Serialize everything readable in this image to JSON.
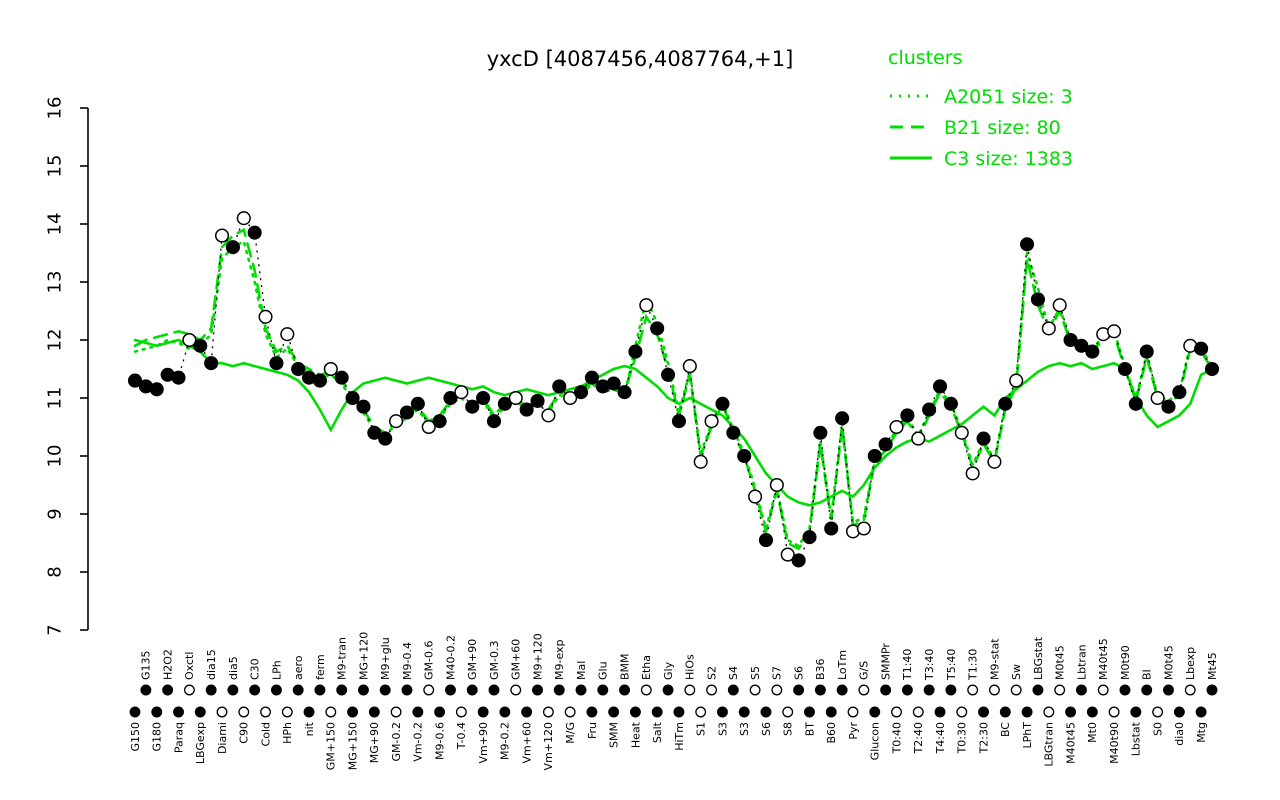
{
  "title": "yxcD [4087456,4087764,+1]",
  "colors": {
    "cluster_green": "#00dd00",
    "points_black": "#000000",
    "background": "#ffffff"
  },
  "legend": {
    "title": "clusters",
    "entries": [
      {
        "label": "A2051 size: 3",
        "style": "dotted"
      },
      {
        "label": "B21 size: 80",
        "style": "dashed"
      },
      {
        "label": "C3 size: 1383",
        "style": "solid"
      }
    ]
  },
  "chart_data": {
    "type": "line",
    "title": "yxcD [4087456,4087764,+1]",
    "xlabel": "",
    "ylabel": "",
    "ylim": [
      7,
      16
    ],
    "yticks": [
      7,
      8,
      9,
      10,
      11,
      12,
      13,
      14,
      15,
      16
    ],
    "grid": false,
    "legend_position": "top-right",
    "categories": [
      "G150",
      "G135",
      "G180",
      "H2O2",
      "Paraq",
      "Oxctl",
      "LBGexp",
      "dia15",
      "Diami",
      "dia5",
      "C90",
      "C30",
      "Cold",
      "LPh",
      "HPh",
      "aero",
      "nit",
      "ferm",
      "GM+150",
      "M9-tran",
      "MG+150",
      "MG+120",
      "MG+90",
      "M9+glu",
      "GM-0.2",
      "M9-0.4",
      "Vm-0.2",
      "GM-0.6",
      "M9-0.6",
      "M40-0.2",
      "T-0.4",
      "GM+90",
      "Vm+90",
      "GM-0.3",
      "M9-0.2",
      "GM+60",
      "Vm+60",
      "M9+120",
      "Vm+120",
      "M9-exp",
      "M/G",
      "Mal",
      "Fru",
      "Glu",
      "SMM",
      "BMM",
      "Heat",
      "Etha",
      "Salt",
      "Gly",
      "HiTm",
      "HiOs",
      "S1",
      "S2",
      "S3",
      "S4",
      "S3",
      "S5",
      "S6",
      "S7",
      "S8",
      "S6",
      "BT",
      "B36",
      "B60",
      "LoTm",
      "Pyr",
      "G/S",
      "Glucon",
      "SMMPr",
      "T0:40",
      "T1:40",
      "T2:40",
      "T3:40",
      "T4:40",
      "T5:40",
      "T0:30",
      "T1:30",
      "T2:30",
      "M9-stat",
      "BC",
      "Sw",
      "LPhT",
      "LBGstat",
      "LBGtran",
      "M0t45",
      "M40t45",
      "Lbtran",
      "Mt0",
      "M40t45",
      "M40t90",
      "M0t90",
      "Lbstat",
      "BI",
      "S0",
      "M0t45",
      "dia0",
      "Lbexp",
      "Mtg",
      "Mt45"
    ],
    "points": {
      "name": "yxcD expression per condition",
      "values": [
        11.3,
        11.2,
        11.15,
        11.4,
        11.35,
        12.0,
        11.9,
        11.6,
        13.8,
        13.6,
        14.1,
        13.85,
        12.4,
        11.6,
        12.1,
        11.5,
        11.35,
        11.3,
        11.5,
        11.35,
        11.0,
        10.85,
        10.4,
        10.3,
        10.6,
        10.75,
        10.9,
        10.5,
        10.6,
        11.0,
        11.1,
        10.85,
        11.0,
        10.6,
        10.9,
        11.0,
        10.8,
        10.95,
        10.7,
        11.2,
        11.0,
        11.1,
        11.35,
        11.2,
        11.25,
        11.1,
        11.8,
        12.6,
        12.2,
        11.4,
        10.6,
        11.55,
        9.9,
        10.6,
        10.9,
        10.4,
        10.0,
        9.3,
        8.55,
        9.5,
        8.3,
        8.2,
        8.6,
        10.4,
        8.75,
        10.65,
        8.7,
        8.75,
        10.0,
        10.2,
        10.5,
        10.7,
        10.3,
        10.8,
        11.2,
        10.9,
        10.4,
        9.7,
        10.3,
        9.9,
        10.9,
        11.3,
        13.65,
        12.7,
        12.2,
        12.6,
        12.0,
        11.9,
        11.8,
        12.1,
        12.15,
        11.5,
        10.9,
        11.8,
        11.0,
        10.85,
        11.1,
        11.9,
        11.85,
        11.5
      ],
      "markers": [
        "filled",
        "filled",
        "filled",
        "filled",
        "filled",
        "open",
        "filled",
        "filled",
        "open",
        "filled",
        "open",
        "filled",
        "open",
        "filled",
        "open",
        "filled",
        "filled",
        "filled",
        "open",
        "filled",
        "filled",
        "filled",
        "filled",
        "filled",
        "open",
        "filled",
        "filled",
        "open",
        "filled",
        "filled",
        "open",
        "filled",
        "filled",
        "filled",
        "filled",
        "open",
        "filled",
        "filled",
        "open",
        "filled",
        "open",
        "filled",
        "filled",
        "filled",
        "filled",
        "filled",
        "filled",
        "open",
        "filled",
        "filled",
        "filled",
        "open",
        "open",
        "open",
        "filled",
        "filled",
        "filled",
        "open",
        "filled",
        "open",
        "open",
        "filled",
        "filled",
        "filled",
        "filled",
        "filled",
        "open",
        "open",
        "filled",
        "filled",
        "open",
        "filled",
        "open",
        "filled",
        "filled",
        "filled",
        "open",
        "open",
        "filled",
        "open",
        "filled",
        "open",
        "filled",
        "filled",
        "open",
        "open",
        "filled",
        "filled",
        "filled",
        "open",
        "open",
        "filled",
        "filled",
        "filled",
        "open",
        "filled",
        "filled",
        "open",
        "filled",
        "filled"
      ]
    },
    "series": [
      {
        "name": "A2051 size: 3",
        "style": "dotted",
        "size": 3,
        "values": [
          11.8,
          11.85,
          11.9,
          12.0,
          11.95,
          11.85,
          11.9,
          12.1,
          13.4,
          13.6,
          13.7,
          13.0,
          12.1,
          11.7,
          11.85,
          11.55,
          11.45,
          11.35,
          11.4,
          11.25,
          10.95,
          10.75,
          10.45,
          10.35,
          10.55,
          10.65,
          10.8,
          10.55,
          10.65,
          10.9,
          11.0,
          10.85,
          10.95,
          10.65,
          10.85,
          10.95,
          10.8,
          10.9,
          10.75,
          11.05,
          11.0,
          11.05,
          11.25,
          11.1,
          11.15,
          11.05,
          11.9,
          12.7,
          12.3,
          11.6,
          10.75,
          11.45,
          10.05,
          10.55,
          10.95,
          10.45,
          10.05,
          9.45,
          8.75,
          9.45,
          8.55,
          8.45,
          8.75,
          10.25,
          8.95,
          10.55,
          8.85,
          8.95,
          9.95,
          10.15,
          10.45,
          10.65,
          10.35,
          10.75,
          11.15,
          10.9,
          10.45,
          9.85,
          10.25,
          9.95,
          10.85,
          11.25,
          13.5,
          12.9,
          12.2,
          12.55,
          12.0,
          11.9,
          11.85,
          12.05,
          12.15,
          11.55,
          11.0,
          11.75,
          11.05,
          10.95,
          11.1,
          11.9,
          11.85,
          11.55
        ]
      },
      {
        "name": "B21 size: 80",
        "style": "dashed",
        "size": 80,
        "values": [
          11.9,
          12.0,
          12.05,
          12.1,
          12.15,
          12.1,
          12.0,
          12.2,
          13.6,
          13.8,
          13.9,
          13.2,
          12.2,
          11.8,
          11.9,
          11.6,
          11.5,
          11.4,
          11.45,
          11.3,
          11.0,
          10.8,
          10.5,
          10.4,
          10.6,
          10.7,
          10.85,
          10.6,
          10.7,
          10.95,
          11.05,
          10.9,
          11.0,
          10.7,
          10.9,
          11.0,
          10.85,
          10.95,
          10.8,
          11.1,
          11.05,
          11.1,
          11.3,
          11.15,
          11.2,
          11.1,
          11.7,
          12.4,
          12.1,
          11.5,
          10.7,
          11.4,
          10.0,
          10.5,
          10.9,
          10.4,
          10.0,
          9.4,
          8.7,
          9.4,
          8.5,
          8.4,
          8.7,
          10.2,
          8.9,
          10.5,
          8.8,
          8.9,
          9.9,
          10.1,
          10.4,
          10.6,
          10.3,
          10.7,
          11.1,
          10.85,
          10.4,
          9.8,
          10.2,
          9.9,
          10.8,
          11.2,
          13.4,
          12.6,
          12.15,
          12.5,
          11.95,
          11.85,
          11.8,
          12.0,
          12.1,
          11.5,
          10.95,
          11.7,
          11.0,
          10.9,
          11.05,
          11.85,
          11.8,
          11.5
        ]
      },
      {
        "name": "C3 size: 1383",
        "style": "solid",
        "size": 1383,
        "values": [
          12.0,
          11.95,
          11.9,
          11.95,
          12.0,
          11.9,
          11.8,
          11.6,
          11.6,
          11.55,
          11.6,
          11.55,
          11.5,
          11.45,
          11.4,
          11.3,
          11.1,
          10.8,
          10.45,
          10.8,
          11.1,
          11.25,
          11.3,
          11.35,
          11.3,
          11.25,
          11.3,
          11.35,
          11.3,
          11.25,
          11.2,
          11.15,
          11.2,
          11.1,
          11.05,
          11.1,
          11.15,
          11.1,
          11.05,
          11.1,
          11.15,
          11.2,
          11.3,
          11.4,
          11.5,
          11.55,
          11.5,
          11.35,
          11.2,
          11.0,
          10.9,
          11.0,
          10.9,
          10.8,
          10.7,
          10.5,
          10.3,
          10.0,
          9.7,
          9.5,
          9.3,
          9.2,
          9.15,
          9.2,
          9.3,
          9.4,
          9.3,
          9.5,
          9.8,
          10.0,
          10.15,
          10.25,
          10.3,
          10.25,
          10.35,
          10.45,
          10.55,
          10.7,
          10.85,
          10.7,
          11.0,
          11.15,
          11.3,
          11.45,
          11.55,
          11.6,
          11.55,
          11.6,
          11.5,
          11.55,
          11.6,
          11.5,
          11.0,
          10.7,
          10.5,
          10.6,
          10.7,
          10.9,
          11.4,
          11.5
        ]
      }
    ]
  }
}
